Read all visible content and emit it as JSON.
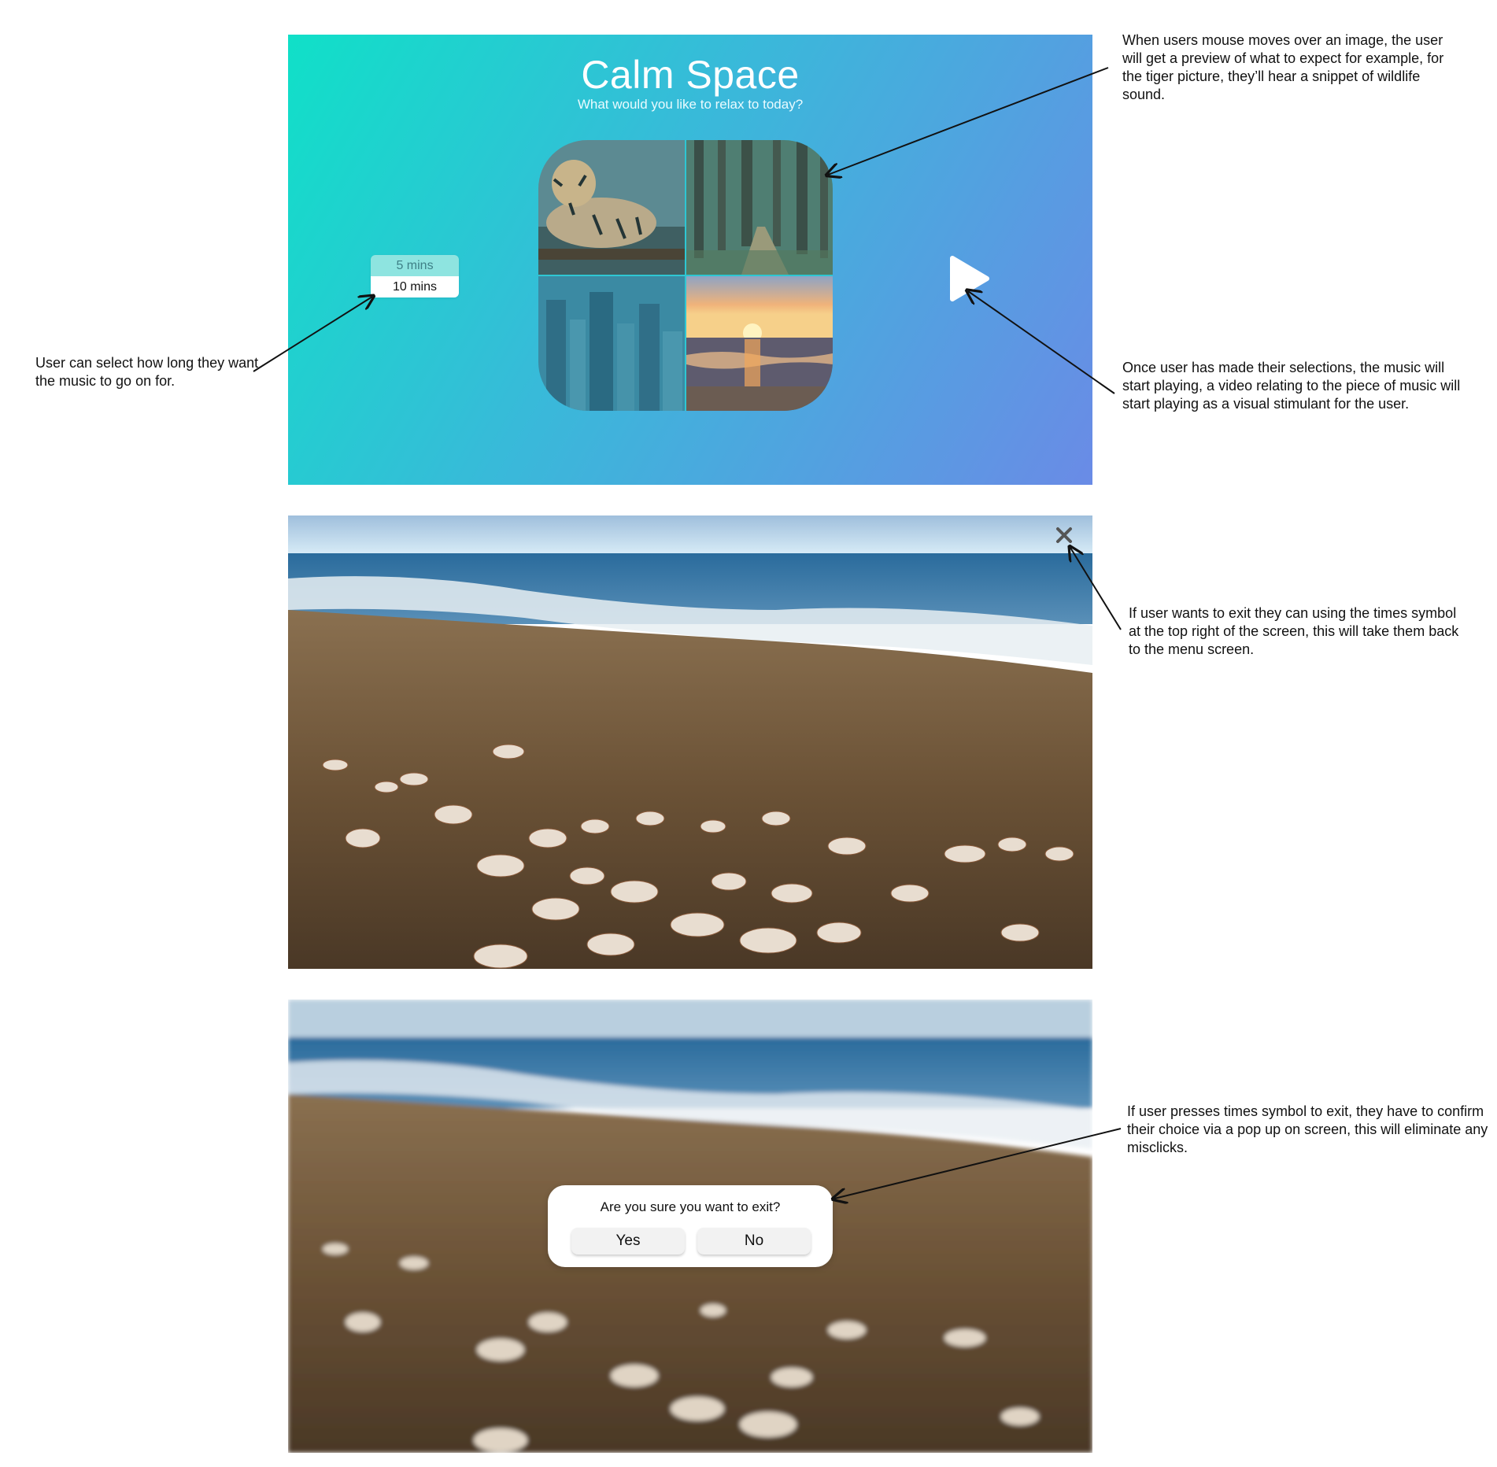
{
  "menu": {
    "title": "Calm Space",
    "subtitle": "What would you like to relax to today?",
    "tiles": [
      {
        "name": "tiger",
        "icon": "tiger-image"
      },
      {
        "name": "forest",
        "icon": "forest-image"
      },
      {
        "name": "city",
        "icon": "city-image"
      },
      {
        "name": "sunset",
        "icon": "sunset-image"
      }
    ],
    "durations": [
      "5 mins",
      "10 mins"
    ],
    "selected_duration": "10 mins",
    "play_icon": "play-icon"
  },
  "player": {
    "close_icon": "close-icon",
    "scene": "beach-shells"
  },
  "exit_dialog": {
    "question": "Are you sure you want to exit?",
    "yes_label": "Yes",
    "no_label": "No"
  },
  "annotations": {
    "hover_preview": "When users mouse moves over an image, the user will get a preview of what to expect for example, for the tiger picture, they’ll hear a snippet of wildlife sound.",
    "duration_select": "User can select how long they want the music to go on for.",
    "play_start": "Once user has made their selections, the music will start playing, a video relating to the piece of music will start playing as a visual stimulant for the user.",
    "exit_times": "If user wants to exit they can using the times symbol at the top right of the screen, this will take them back to the menu screen.",
    "confirm_exit": "If user presses times symbol to exit, they have to confirm their choice via a pop up on screen, this will eliminate any misclicks."
  },
  "colors": {
    "gradient_start": "#10e0c8",
    "gradient_end": "#6a8be6",
    "duration_highlight": "#8ee4e0"
  }
}
